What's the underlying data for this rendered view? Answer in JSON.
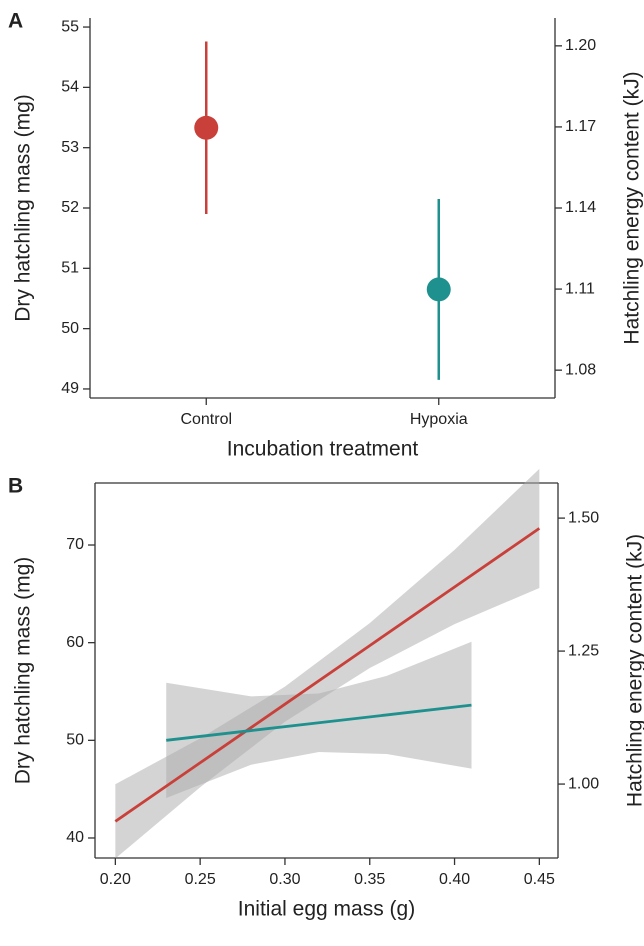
{
  "chart_data": [
    {
      "type": "errorbar",
      "label": "A",
      "x_label": "Incubation treatment",
      "y_label": "Dry hatchling mass (mg)",
      "y2_label": "Hatchling energy content (kJ)",
      "categories": [
        "Control",
        "Hypoxia"
      ],
      "values": [
        53.33,
        50.65
      ],
      "errors": [
        1.43,
        1.5
      ],
      "colors": [
        "#c9403a",
        "#1e918f"
      ],
      "ylim": [
        48.85,
        55.15
      ],
      "yticks": [
        49,
        50,
        51,
        52,
        53,
        54,
        55
      ],
      "y2lim": [
        1.0697,
        1.2103
      ],
      "y2ticks": [
        1.08,
        1.11,
        1.14,
        1.17,
        {
          "value": 1.2,
          "label": "1.20"
        }
      ]
    },
    {
      "type": "line",
      "label": "B",
      "x_label": "Initial egg mass (g)",
      "y_label": "Dry hatchling mass (mg)",
      "y2_label": "Hatchling energy content (kJ)",
      "band_color": "#a9a9a9",
      "series": [
        {
          "color": "#c9403a",
          "x": [
            0.2,
            0.25,
            0.3,
            0.35,
            0.4,
            0.45
          ],
          "values": [
            41.7,
            47.7,
            53.7,
            59.7,
            65.7,
            71.7
          ],
          "lower": [
            37.9,
            45.2,
            51.9,
            57.4,
            61.9,
            65.6
          ],
          "upper": [
            45.5,
            50.2,
            55.5,
            62.0,
            69.5,
            77.8
          ]
        },
        {
          "color": "#1e918f",
          "x": [
            0.23,
            0.28,
            0.32,
            0.36,
            0.41
          ],
          "values": [
            50.0,
            51.0,
            51.8,
            52.6,
            53.6
          ],
          "lower": [
            44.1,
            47.5,
            48.8,
            48.6,
            47.1
          ],
          "upper": [
            55.9,
            54.5,
            54.8,
            56.6,
            60.1
          ]
        }
      ],
      "xlim": [
        0.188,
        0.461
      ],
      "xticks": [
        {
          "value": 0.2,
          "label": "0.20"
        },
        0.25,
        {
          "value": 0.3,
          "label": "0.30"
        },
        0.35,
        {
          "value": 0.4,
          "label": "0.40"
        },
        0.45
      ],
      "ylim": [
        37.95,
        76.35
      ],
      "yticks": [
        40,
        50,
        60,
        70
      ],
      "y2lim": [
        0.861,
        1.566
      ],
      "y2ticks": [
        {
          "value": 1.0,
          "label": "1.00"
        },
        1.25,
        {
          "value": 1.5,
          "label": "1.50"
        }
      ]
    }
  ]
}
